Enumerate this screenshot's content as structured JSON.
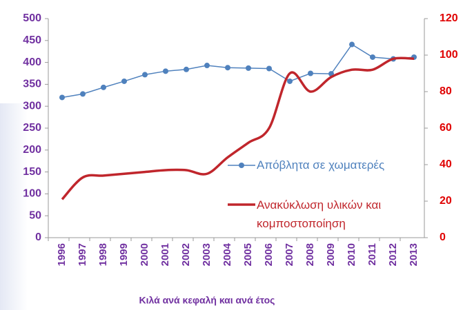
{
  "chart_data": {
    "type": "line",
    "x_label": "Κιλά ανά κεφαλή και ανά έτος",
    "categories": [
      "1996",
      "1997",
      "1998",
      "1999",
      "2000",
      "2001",
      "2002",
      "2003",
      "2004",
      "2005",
      "2006",
      "2007",
      "2008",
      "2009",
      "2010",
      "2011",
      "2012",
      "2013"
    ],
    "series": [
      {
        "name": "Απόβλητα σε χωματερές",
        "color": "#4f81bd",
        "axis": "y",
        "markers": true,
        "values": [
          320,
          328,
          343,
          357,
          372,
          380,
          384,
          393,
          388,
          387,
          386,
          357,
          375,
          374,
          441,
          412,
          408,
          412
        ]
      },
      {
        "name": "Ανακύκλωση υλικών και κομποστοποίηση",
        "color": "#c0262c",
        "axis": "y2",
        "markers": false,
        "values": [
          21,
          33,
          34,
          35,
          36,
          37,
          37,
          35,
          44,
          52,
          60,
          90,
          80,
          88,
          92,
          92,
          98,
          98
        ]
      }
    ],
    "ylim": [
      0,
      500
    ],
    "yticks": [
      0,
      50,
      100,
      150,
      200,
      250,
      300,
      350,
      400,
      450,
      500
    ],
    "y2lim": [
      0,
      120
    ],
    "y2ticks": [
      0,
      20,
      40,
      60,
      80,
      100,
      120
    ],
    "ytick_color": "#7030a0",
    "y2tick_color": "#e00000"
  }
}
